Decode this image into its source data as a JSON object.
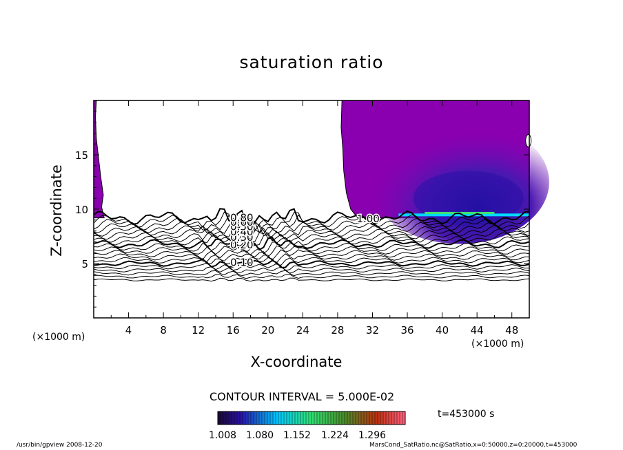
{
  "chart_data": {
    "type": "heatmap",
    "title": "saturation ratio",
    "xlabel": "X-coordinate",
    "ylabel": "Z-coordinate",
    "x_unit": "(×1000 m)",
    "xlim": [
      0,
      50
    ],
    "ylim": [
      0,
      20
    ],
    "xticks": [
      "4",
      "8",
      "12",
      "16",
      "20",
      "24",
      "28",
      "32",
      "36",
      "40",
      "44",
      "48"
    ],
    "yticks": [
      "5",
      "10",
      "15"
    ],
    "contour_labels": [
      {
        "text": "0.10",
        "x": 17,
        "z": 5.1
      },
      {
        "text": "0.20",
        "x": 17,
        "z": 6.7
      },
      {
        "text": "0.30",
        "x": 17,
        "z": 7.4
      },
      {
        "text": "0.40",
        "x": 17,
        "z": 7.9
      },
      {
        "text": "0.50",
        "x": 17,
        "z": 8.4
      },
      {
        "text": "0.60",
        "x": 17,
        "z": 8.8
      },
      {
        "text": "0.80",
        "x": 17,
        "z": 9.2
      },
      {
        "text": "1.00",
        "x": 31.5,
        "z": 9.1
      }
    ],
    "contour_interval": "CONTOUR INTERVAL = 5.000E-02",
    "colorbar": {
      "labels": [
        "1.008",
        "1.080",
        "1.152",
        "1.224",
        "1.296"
      ],
      "min": 1.008,
      "max": 1.296
    },
    "time_label": "t=453000 s"
  },
  "footer": {
    "left": "/usr/bin/gpview   2008-12-20",
    "right": "MarsCond_SatRatio.nc@SatRatio,x=0:50000,z=0:20000,t=453000"
  },
  "colors": {
    "supersat_purple": "#8a00b0",
    "mid_violet": "#6a14b4",
    "deep_blue": "#2a10a8",
    "cyan": "#00d8ff",
    "green": "#40e070"
  }
}
